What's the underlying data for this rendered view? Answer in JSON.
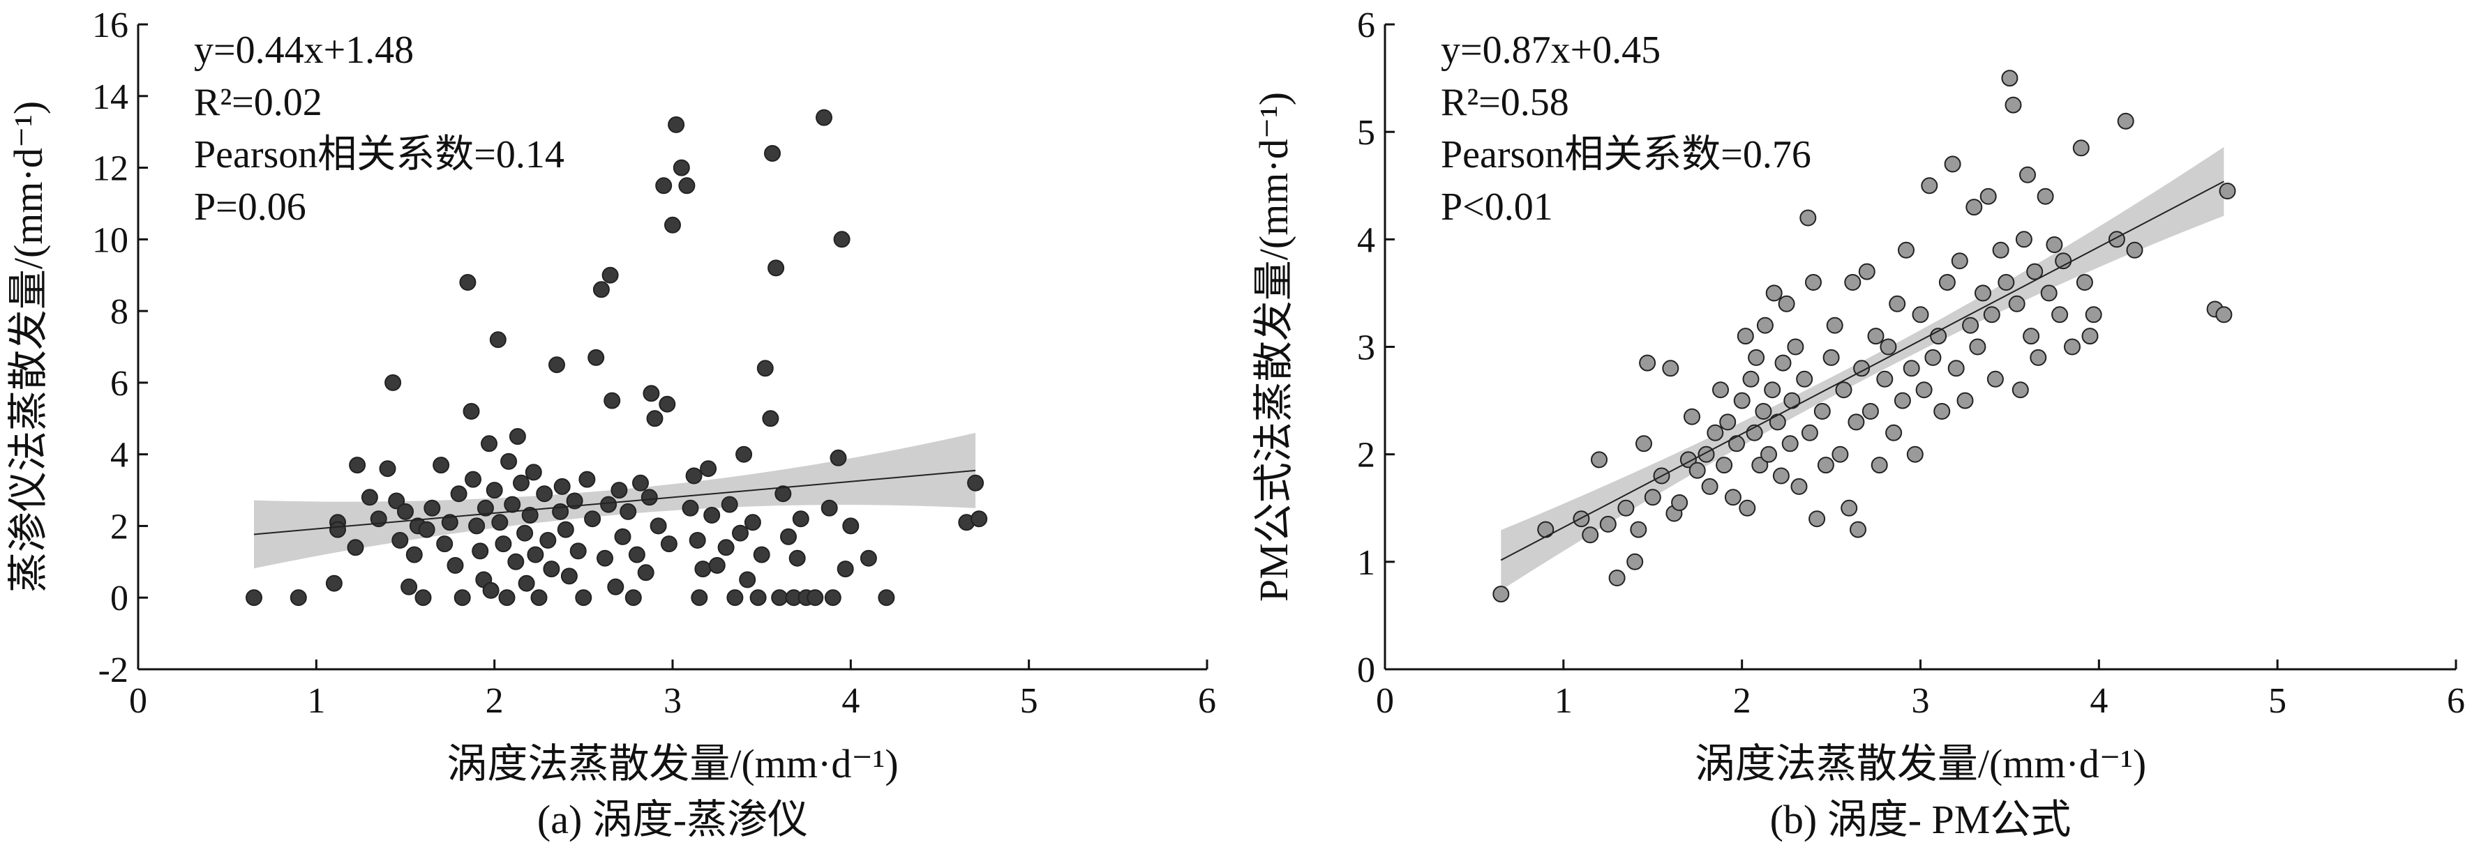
{
  "chart_data": [
    {
      "type": "scatter",
      "panel_id": "a",
      "caption": "(a) 涡度-蒸渗仪",
      "xlabel": "涡度法蒸散发量/(mm·d⁻¹)",
      "ylabel": "蒸渗仪法蒸散发量/(mm·d⁻¹)",
      "xlim": [
        0,
        6
      ],
      "ylim": [
        -2,
        16
      ],
      "xticks": [
        "0",
        "1",
        "2",
        "3",
        "4",
        "5",
        "6"
      ],
      "yticks": [
        "-2",
        "0",
        "2",
        "4",
        "6",
        "8",
        "10",
        "12",
        "14",
        "16"
      ],
      "annotations": {
        "equation": "y=0.44x+1.48",
        "r2": "R²=0.02",
        "pearson": "Pearson相关系数=0.14",
        "p_value": "P=0.06"
      },
      "fit": {
        "slope": 0.44,
        "intercept": 1.48,
        "x_range": [
          0.65,
          4.7
        ],
        "ci_halfwidth_ends": [
          0.95,
          1.05
        ],
        "ci_halfwidth_center": 0.35
      },
      "marker_color": "#3a3a3a",
      "points": [
        [
          0.65,
          0
        ],
        [
          0.9,
          0
        ],
        [
          1.1,
          0.4
        ],
        [
          1.12,
          2.1
        ],
        [
          1.12,
          1.9
        ],
        [
          1.22,
          1.4
        ],
        [
          1.23,
          3.7
        ],
        [
          1.3,
          2.8
        ],
        [
          1.35,
          2.2
        ],
        [
          1.4,
          3.6
        ],
        [
          1.43,
          6
        ],
        [
          1.45,
          2.7
        ],
        [
          1.47,
          1.6
        ],
        [
          1.5,
          2.4
        ],
        [
          1.52,
          0.3
        ],
        [
          1.55,
          1.2
        ],
        [
          1.57,
          2.0
        ],
        [
          1.6,
          0
        ],
        [
          1.62,
          1.9
        ],
        [
          1.65,
          2.5
        ],
        [
          1.7,
          3.7
        ],
        [
          1.72,
          1.5
        ],
        [
          1.75,
          2.1
        ],
        [
          1.78,
          0.9
        ],
        [
          1.8,
          2.9
        ],
        [
          1.82,
          0
        ],
        [
          1.85,
          8.8
        ],
        [
          1.87,
          5.2
        ],
        [
          1.88,
          3.3
        ],
        [
          1.9,
          2.0
        ],
        [
          1.92,
          1.3
        ],
        [
          1.94,
          0.5
        ],
        [
          1.95,
          2.5
        ],
        [
          1.97,
          4.3
        ],
        [
          1.98,
          0.2
        ],
        [
          2.0,
          3.0
        ],
        [
          2.02,
          7.2
        ],
        [
          2.03,
          2.1
        ],
        [
          2.05,
          1.5
        ],
        [
          2.07,
          0
        ],
        [
          2.08,
          3.8
        ],
        [
          2.1,
          2.6
        ],
        [
          2.12,
          1.0
        ],
        [
          2.13,
          4.5
        ],
        [
          2.15,
          3.2
        ],
        [
          2.17,
          1.8
        ],
        [
          2.18,
          0.4
        ],
        [
          2.2,
          2.3
        ],
        [
          2.22,
          3.5
        ],
        [
          2.23,
          1.2
        ],
        [
          2.25,
          0
        ],
        [
          2.28,
          2.9
        ],
        [
          2.3,
          1.6
        ],
        [
          2.32,
          0.8
        ],
        [
          2.35,
          6.5
        ],
        [
          2.37,
          2.4
        ],
        [
          2.38,
          3.1
        ],
        [
          2.4,
          1.9
        ],
        [
          2.42,
          0.6
        ],
        [
          2.45,
          2.7
        ],
        [
          2.47,
          1.3
        ],
        [
          2.5,
          0
        ],
        [
          2.52,
          3.3
        ],
        [
          2.55,
          2.2
        ],
        [
          2.57,
          6.7
        ],
        [
          2.6,
          8.6
        ],
        [
          2.62,
          1.1
        ],
        [
          2.64,
          2.6
        ],
        [
          2.65,
          9.0
        ],
        [
          2.66,
          5.5
        ],
        [
          2.68,
          0.3
        ],
        [
          2.7,
          3.0
        ],
        [
          2.72,
          1.7
        ],
        [
          2.75,
          2.4
        ],
        [
          2.78,
          0
        ],
        [
          2.8,
          1.2
        ],
        [
          2.82,
          3.2
        ],
        [
          2.85,
          0.7
        ],
        [
          2.87,
          2.8
        ],
        [
          2.88,
          5.7
        ],
        [
          2.9,
          5.0
        ],
        [
          2.92,
          2.0
        ],
        [
          2.95,
          11.5
        ],
        [
          2.97,
          5.4
        ],
        [
          2.98,
          1.5
        ],
        [
          3.0,
          10.4
        ],
        [
          3.02,
          13.2
        ],
        [
          3.05,
          12.0
        ],
        [
          3.08,
          11.5
        ],
        [
          3.1,
          2.5
        ],
        [
          3.12,
          3.4
        ],
        [
          3.14,
          1.6
        ],
        [
          3.15,
          0
        ],
        [
          3.17,
          0.8
        ],
        [
          3.2,
          3.6
        ],
        [
          3.22,
          2.3
        ],
        [
          3.25,
          0.9
        ],
        [
          3.3,
          1.4
        ],
        [
          3.32,
          2.6
        ],
        [
          3.35,
          0
        ],
        [
          3.38,
          1.8
        ],
        [
          3.4,
          4.0
        ],
        [
          3.42,
          0.5
        ],
        [
          3.45,
          2.1
        ],
        [
          3.48,
          0
        ],
        [
          3.5,
          1.2
        ],
        [
          3.52,
          6.4
        ],
        [
          3.55,
          5.0
        ],
        [
          3.56,
          12.4
        ],
        [
          3.58,
          9.2
        ],
        [
          3.6,
          0
        ],
        [
          3.62,
          2.9
        ],
        [
          3.65,
          1.7
        ],
        [
          3.68,
          0
        ],
        [
          3.7,
          1.1
        ],
        [
          3.72,
          2.2
        ],
        [
          3.75,
          0
        ],
        [
          3.8,
          0
        ],
        [
          3.85,
          13.4
        ],
        [
          3.88,
          2.5
        ],
        [
          3.9,
          0
        ],
        [
          3.93,
          3.9
        ],
        [
          3.95,
          10
        ],
        [
          3.97,
          0.8
        ],
        [
          4.0,
          2.0
        ],
        [
          4.1,
          1.1
        ],
        [
          4.2,
          0
        ],
        [
          4.65,
          2.1
        ],
        [
          4.7,
          3.2
        ],
        [
          4.72,
          2.2
        ]
      ]
    },
    {
      "type": "scatter",
      "panel_id": "b",
      "caption": "(b) 涡度- PM公式",
      "xlabel": "涡度法蒸散发量/(mm·d⁻¹)",
      "ylabel": "PM公式法蒸散发量/(mm·d⁻¹)",
      "xlim": [
        0,
        6
      ],
      "ylim": [
        0,
        6
      ],
      "xticks": [
        "0",
        "1",
        "2",
        "3",
        "4",
        "5",
        "6"
      ],
      "yticks": [
        "0",
        "1",
        "2",
        "3",
        "4",
        "5",
        "6"
      ],
      "annotations": {
        "equation": "y=0.87x+0.45",
        "r2": "R²=0.58",
        "pearson": "Pearson相关系数=0.76",
        "p_value": "P<0.01"
      },
      "fit": {
        "slope": 0.87,
        "intercept": 0.45,
        "x_range": [
          0.65,
          4.7
        ],
        "ci_halfwidth_ends": [
          0.28,
          0.32
        ],
        "ci_halfwidth_center": 0.09
      },
      "marker_color": "#9a9a9a",
      "points": [
        [
          0.65,
          0.7
        ],
        [
          0.9,
          1.3
        ],
        [
          1.1,
          1.4
        ],
        [
          1.15,
          1.25
        ],
        [
          1.2,
          1.95
        ],
        [
          1.25,
          1.35
        ],
        [
          1.3,
          0.85
        ],
        [
          1.35,
          1.5
        ],
        [
          1.4,
          1.0
        ],
        [
          1.42,
          1.3
        ],
        [
          1.45,
          2.1
        ],
        [
          1.47,
          2.85
        ],
        [
          1.5,
          1.6
        ],
        [
          1.55,
          1.8
        ],
        [
          1.6,
          2.8
        ],
        [
          1.62,
          1.45
        ],
        [
          1.65,
          1.55
        ],
        [
          1.7,
          1.95
        ],
        [
          1.72,
          2.35
        ],
        [
          1.75,
          1.85
        ],
        [
          1.8,
          2.0
        ],
        [
          1.82,
          1.7
        ],
        [
          1.85,
          2.2
        ],
        [
          1.88,
          2.6
        ],
        [
          1.9,
          1.9
        ],
        [
          1.92,
          2.3
        ],
        [
          1.95,
          1.6
        ],
        [
          1.97,
          2.1
        ],
        [
          2.0,
          2.5
        ],
        [
          2.02,
          3.1
        ],
        [
          2.03,
          1.5
        ],
        [
          2.05,
          2.7
        ],
        [
          2.07,
          2.2
        ],
        [
          2.08,
          2.9
        ],
        [
          2.1,
          1.9
        ],
        [
          2.12,
          2.4
        ],
        [
          2.13,
          3.2
        ],
        [
          2.15,
          2.0
        ],
        [
          2.17,
          2.6
        ],
        [
          2.18,
          3.5
        ],
        [
          2.2,
          2.3
        ],
        [
          2.22,
          1.8
        ],
        [
          2.23,
          2.85
        ],
        [
          2.25,
          3.4
        ],
        [
          2.27,
          2.1
        ],
        [
          2.28,
          2.5
        ],
        [
          2.3,
          3.0
        ],
        [
          2.32,
          1.7
        ],
        [
          2.35,
          2.7
        ],
        [
          2.37,
          4.2
        ],
        [
          2.38,
          2.2
        ],
        [
          2.4,
          3.6
        ],
        [
          2.42,
          1.4
        ],
        [
          2.45,
          2.4
        ],
        [
          2.47,
          1.9
        ],
        [
          2.5,
          2.9
        ],
        [
          2.52,
          3.2
        ],
        [
          2.55,
          2.0
        ],
        [
          2.57,
          2.6
        ],
        [
          2.6,
          1.5
        ],
        [
          2.62,
          3.6
        ],
        [
          2.64,
          2.3
        ],
        [
          2.65,
          1.3
        ],
        [
          2.67,
          2.8
        ],
        [
          2.7,
          3.7
        ],
        [
          2.72,
          2.4
        ],
        [
          2.75,
          3.1
        ],
        [
          2.77,
          1.9
        ],
        [
          2.8,
          2.7
        ],
        [
          2.82,
          3.0
        ],
        [
          2.85,
          2.2
        ],
        [
          2.87,
          3.4
        ],
        [
          2.9,
          2.5
        ],
        [
          2.92,
          3.9
        ],
        [
          2.95,
          2.8
        ],
        [
          2.97,
          2.0
        ],
        [
          3.0,
          3.3
        ],
        [
          3.02,
          2.6
        ],
        [
          3.05,
          4.5
        ],
        [
          3.07,
          2.9
        ],
        [
          3.1,
          3.1
        ],
        [
          3.12,
          2.4
        ],
        [
          3.15,
          3.6
        ],
        [
          3.18,
          4.7
        ],
        [
          3.2,
          2.8
        ],
        [
          3.22,
          3.8
        ],
        [
          3.25,
          2.5
        ],
        [
          3.28,
          3.2
        ],
        [
          3.3,
          4.3
        ],
        [
          3.32,
          3.0
        ],
        [
          3.35,
          3.5
        ],
        [
          3.38,
          4.4
        ],
        [
          3.4,
          3.3
        ],
        [
          3.42,
          2.7
        ],
        [
          3.45,
          3.9
        ],
        [
          3.48,
          3.6
        ],
        [
          3.5,
          5.5
        ],
        [
          3.52,
          5.25
        ],
        [
          3.54,
          3.4
        ],
        [
          3.56,
          2.6
        ],
        [
          3.58,
          4.0
        ],
        [
          3.6,
          4.6
        ],
        [
          3.62,
          3.1
        ],
        [
          3.64,
          3.7
        ],
        [
          3.66,
          2.9
        ],
        [
          3.7,
          4.4
        ],
        [
          3.72,
          3.5
        ],
        [
          3.75,
          3.95
        ],
        [
          3.78,
          3.3
        ],
        [
          3.8,
          3.8
        ],
        [
          3.85,
          3.0
        ],
        [
          3.9,
          4.85
        ],
        [
          3.92,
          3.6
        ],
        [
          3.95,
          3.1
        ],
        [
          3.97,
          3.3
        ],
        [
          4.1,
          4.0
        ],
        [
          4.15,
          5.1
        ],
        [
          4.2,
          3.9
        ],
        [
          4.65,
          3.35
        ],
        [
          4.7,
          3.3
        ],
        [
          4.72,
          4.45
        ]
      ]
    }
  ]
}
